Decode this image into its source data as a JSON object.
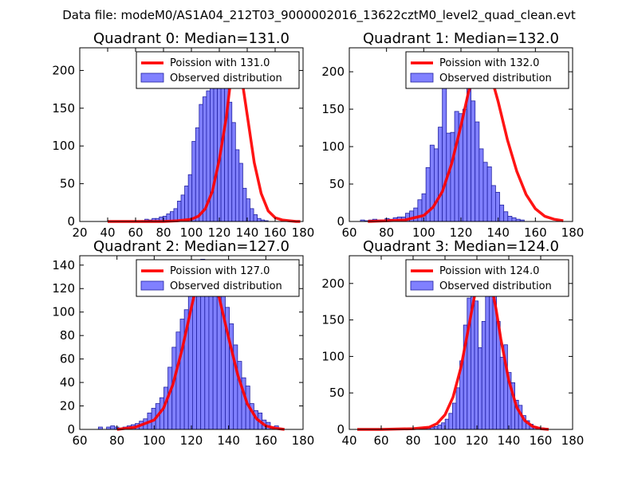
{
  "chart_data": {
    "title": "Data file: modeM0/AS1A04_212T03_9000002016_13622cztM0_level2_quad_clean.evt",
    "type": "bar",
    "colors": {
      "bar_fill": "#8080ff",
      "bar_edge": "#2020a0",
      "line": "#ff0000"
    },
    "panels": [
      {
        "title": "Quadrant 0: Median=131.0",
        "xlim": [
          20,
          180
        ],
        "ylim": [
          0,
          230
        ],
        "xticks": [
          20,
          40,
          60,
          80,
          100,
          120,
          140,
          160,
          180
        ],
        "yticks": [
          0,
          50,
          100,
          150,
          200
        ],
        "legend": [
          "Poission with 131.0",
          "Observed distribution"
        ],
        "bin_start": 64,
        "bin_width": 2.6,
        "bar_values": [
          1,
          3,
          2,
          4,
          4,
          6,
          7,
          10,
          13,
          17,
          27,
          35,
          47,
          62,
          106,
          124,
          155,
          165,
          173,
          209,
          216,
          222,
          208,
          192,
          158,
          131,
          95,
          77,
          44,
          30,
          17,
          9,
          4,
          2,
          1
        ],
        "curve_x": [
          40,
          60,
          80,
          90,
          100,
          105,
          110,
          115,
          120,
          125,
          128,
          131,
          134,
          137,
          140,
          145,
          150,
          155,
          160,
          165,
          170,
          175,
          178
        ],
        "curve_y": [
          0,
          0,
          0,
          1,
          3,
          7,
          17,
          40,
          82,
          138,
          185,
          218,
          210,
          178,
          141,
          78,
          37,
          14,
          5,
          2,
          1,
          0,
          0
        ]
      },
      {
        "title": "Quadrant 1: Median=132.0",
        "xlim": [
          60,
          180
        ],
        "ylim": [
          0,
          232
        ],
        "xticks": [
          60,
          80,
          100,
          120,
          140,
          160,
          180
        ],
        "yticks": [
          0,
          50,
          100,
          150,
          200
        ],
        "legend": [
          "Poission with 132.0",
          "Observed distribution"
        ],
        "bin_start": 66,
        "bin_width": 2.2,
        "bar_values": [
          2,
          1,
          2,
          3,
          2,
          2,
          4,
          3,
          5,
          6,
          6,
          11,
          14,
          18,
          29,
          37,
          72,
          102,
          97,
          126,
          182,
          118,
          119,
          147,
          144,
          150,
          201,
          161,
          133,
          97,
          79,
          73,
          48,
          39,
          22,
          13,
          7,
          5,
          3,
          2
        ],
        "curve_x": [
          70,
          80,
          90,
          100,
          105,
          110,
          115,
          120,
          124,
          128,
          132,
          135,
          140,
          145,
          150,
          155,
          160,
          165,
          170,
          175
        ],
        "curve_y": [
          0,
          1,
          2,
          8,
          19,
          40,
          77,
          128,
          172,
          206,
          218,
          205,
          160,
          109,
          67,
          36,
          17,
          7,
          3,
          1
        ]
      },
      {
        "title": "Quadrant 2: Median=127.0",
        "xlim": [
          60,
          180
        ],
        "ylim": [
          0,
          148
        ],
        "xticks": [
          60,
          80,
          100,
          120,
          140,
          160,
          180
        ],
        "yticks": [
          0,
          20,
          40,
          60,
          80,
          100,
          120,
          140
        ],
        "legend": [
          "Poission with 127.0",
          "Observed distribution"
        ],
        "bin_start": 70,
        "bin_width": 2.2,
        "bar_values": [
          2,
          0,
          2,
          3,
          2,
          0,
          2,
          3,
          4,
          5,
          7,
          9,
          14,
          18,
          22,
          27,
          36,
          53,
          70,
          83,
          94,
          102,
          116,
          128,
          131,
          145,
          138,
          128,
          141,
          128,
          117,
          104,
          90,
          72,
          58,
          44,
          37,
          22,
          16,
          14,
          8,
          6,
          2,
          3,
          1
        ],
        "curve_x": [
          80,
          90,
          100,
          105,
          110,
          115,
          120,
          124,
          127,
          130,
          135,
          140,
          145,
          150,
          155,
          160,
          165,
          170
        ],
        "curve_y": [
          0,
          2,
          8,
          18,
          38,
          68,
          104,
          131,
          142,
          136,
          112,
          78,
          46,
          22,
          9,
          3,
          1,
          0
        ]
      },
      {
        "title": "Quadrant 3: Median=124.0",
        "xlim": [
          40,
          180
        ],
        "ylim": [
          0,
          238
        ],
        "xticks": [
          40,
          60,
          80,
          100,
          120,
          140,
          160,
          180
        ],
        "yticks": [
          0,
          50,
          100,
          150,
          200
        ],
        "legend": [
          "Poission with 124.0",
          "Observed distribution"
        ],
        "bin_start": 84,
        "bin_width": 2.3,
        "bar_values": [
          1,
          2,
          2,
          3,
          4,
          6,
          9,
          14,
          22,
          36,
          57,
          94,
          143,
          180,
          187,
          176,
          112,
          148,
          183,
          201,
          226,
          148,
          99,
          116,
          78,
          64,
          40,
          33,
          19,
          12,
          7,
          4,
          3,
          2,
          1
        ],
        "curve_x": [
          45,
          60,
          80,
          90,
          95,
          100,
          105,
          110,
          115,
          120,
          124,
          128,
          132,
          135,
          140,
          145,
          150,
          155,
          160,
          165
        ],
        "curve_y": [
          0,
          0,
          1,
          3,
          8,
          20,
          44,
          85,
          142,
          200,
          225,
          210,
          165,
          124,
          67,
          30,
          12,
          4,
          1,
          0
        ]
      }
    ]
  }
}
